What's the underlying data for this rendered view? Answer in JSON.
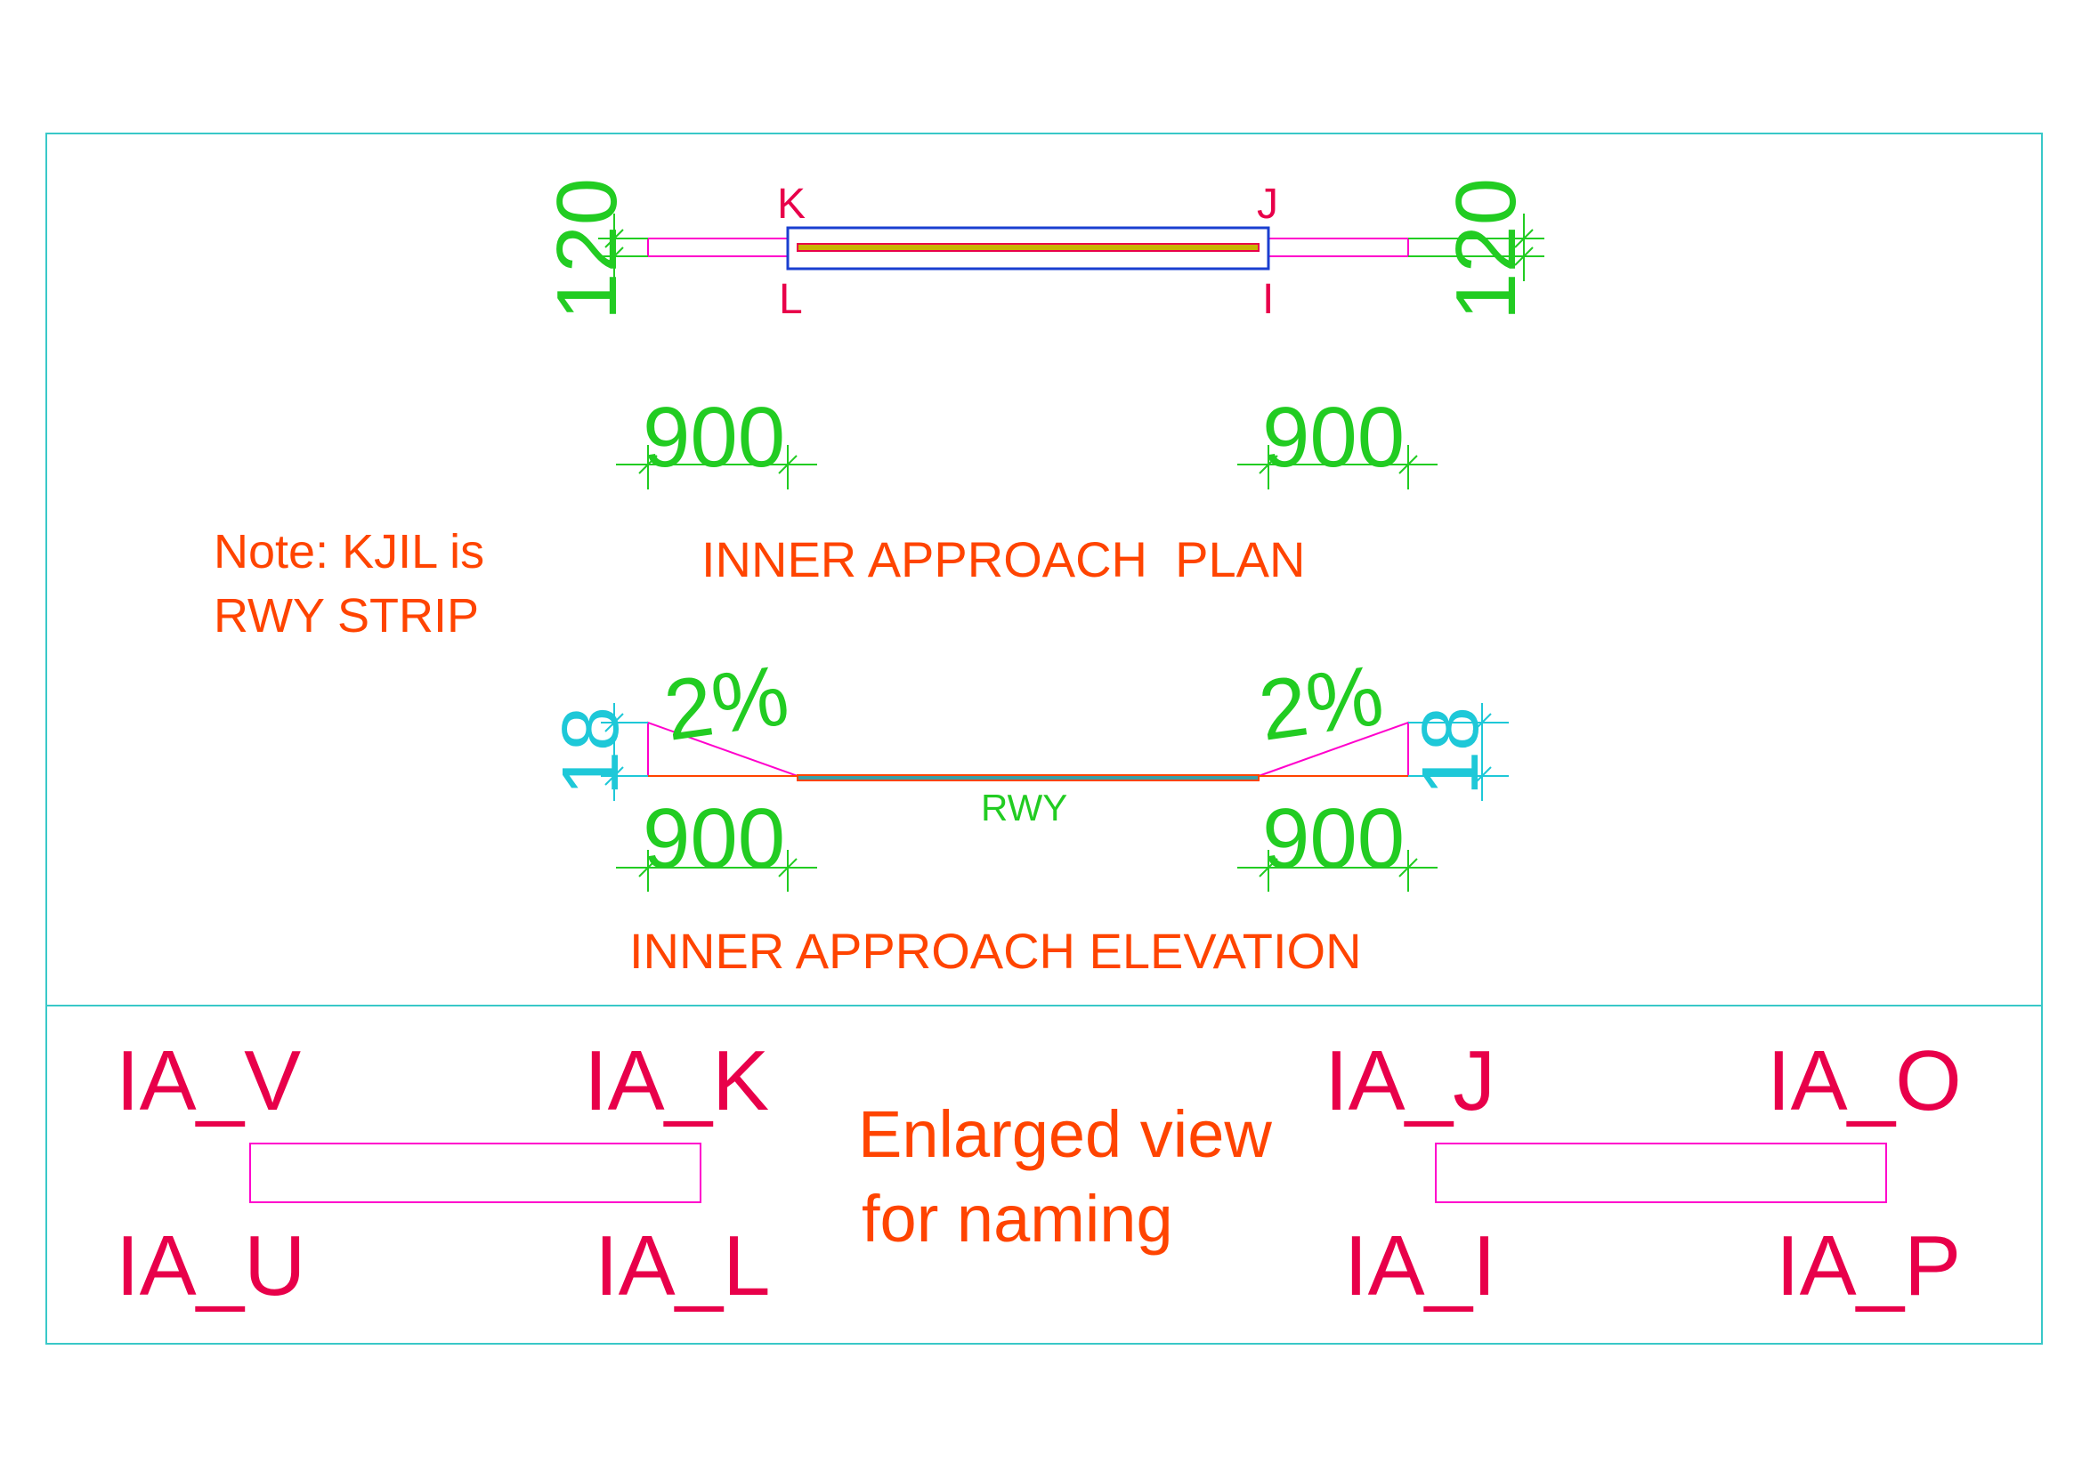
{
  "colors": {
    "frame": "#39c8c8",
    "green_dim": "#22cc22",
    "cyan_dim": "#1ec8d8",
    "magenta": "#ff00cc",
    "pink_label": "#e8004a",
    "orange_text": "#ff4400",
    "blue": "#1a3fd0",
    "olive": "#c8b400",
    "teal": "#3aa0a8"
  },
  "plan": {
    "title": "INNER APPROACH  PLAN",
    "corner_k": "K",
    "corner_j": "J",
    "corner_l": "L",
    "corner_i": "I",
    "width_dim_left": "120",
    "width_dim_right": "120",
    "length_dim_left": "900",
    "length_dim_right": "900"
  },
  "note": {
    "line1": "Note: KJIL is",
    "line2": "RWY STRIP"
  },
  "elevation": {
    "title": "INNER APPROACH ELEVATION",
    "slope_left": "2%",
    "slope_right": "2%",
    "height_dim_left": "18",
    "height_dim_right": "18",
    "length_dim_left": "900",
    "length_dim_right": "900",
    "runway_label": "RWY"
  },
  "enlarged": {
    "caption_line1": "Enlarged view",
    "caption_line2": "for naming",
    "left": {
      "top_left": "IA_V",
      "top_right": "IA_K",
      "bottom_left": "IA_U",
      "bottom_right": "IA_L"
    },
    "right": {
      "top_left": "IA_J",
      "top_right": "IA_O",
      "bottom_left": "IA_I",
      "bottom_right": "IA_P"
    }
  }
}
